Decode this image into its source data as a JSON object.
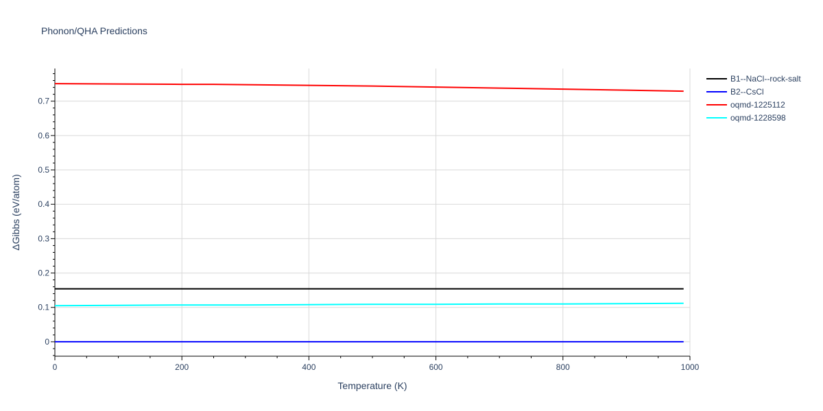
{
  "chart_data": {
    "type": "line",
    "title": "Phonon/QHA Predictions",
    "xlabel": "Temperature (K)",
    "ylabel": "ΔGibbs (eV/atom)",
    "xlim": [
      0,
      1000
    ],
    "ylim": [
      -0.042,
      0.795
    ],
    "xticks": [
      0,
      200,
      400,
      600,
      800,
      1000
    ],
    "xtick_labels": [
      "0",
      "200",
      "400",
      "600",
      "800",
      "1000"
    ],
    "yticks": [
      0,
      0.1,
      0.2,
      0.3,
      0.4,
      0.5,
      0.6,
      0.7
    ],
    "ytick_labels": [
      "0",
      "0.1",
      "0.2",
      "0.3",
      "0.4",
      "0.5",
      "0.6",
      "0.7"
    ],
    "grid": true,
    "legend_position": "top-right",
    "series": [
      {
        "name": "B1--NaCl--rock-salt",
        "color": "#000000",
        "x": [
          0,
          100,
          200,
          300,
          400,
          500,
          600,
          700,
          800,
          900,
          990
        ],
        "y": [
          0.154,
          0.154,
          0.154,
          0.154,
          0.154,
          0.154,
          0.154,
          0.154,
          0.154,
          0.154,
          0.154
        ]
      },
      {
        "name": "B2--CsCl",
        "color": "#0000ff",
        "x": [
          0,
          100,
          200,
          300,
          400,
          500,
          600,
          700,
          800,
          900,
          990
        ],
        "y": [
          0,
          0,
          0,
          0,
          0,
          0,
          0,
          0,
          0,
          0,
          0
        ]
      },
      {
        "name": "oqmd-1225112",
        "color": "#ff0000",
        "x": [
          0,
          100,
          200,
          250,
          300,
          400,
          500,
          600,
          700,
          800,
          900,
          990
        ],
        "y": [
          0.751,
          0.75,
          0.749,
          0.749,
          0.748,
          0.746,
          0.744,
          0.741,
          0.738,
          0.735,
          0.732,
          0.729
        ]
      },
      {
        "name": "oqmd-1228598",
        "color": "#00ffff",
        "x": [
          0,
          100,
          200,
          300,
          400,
          500,
          600,
          700,
          800,
          900,
          990
        ],
        "y": [
          0.105,
          0.106,
          0.107,
          0.107,
          0.108,
          0.109,
          0.109,
          0.11,
          0.11,
          0.111,
          0.112
        ]
      }
    ]
  }
}
